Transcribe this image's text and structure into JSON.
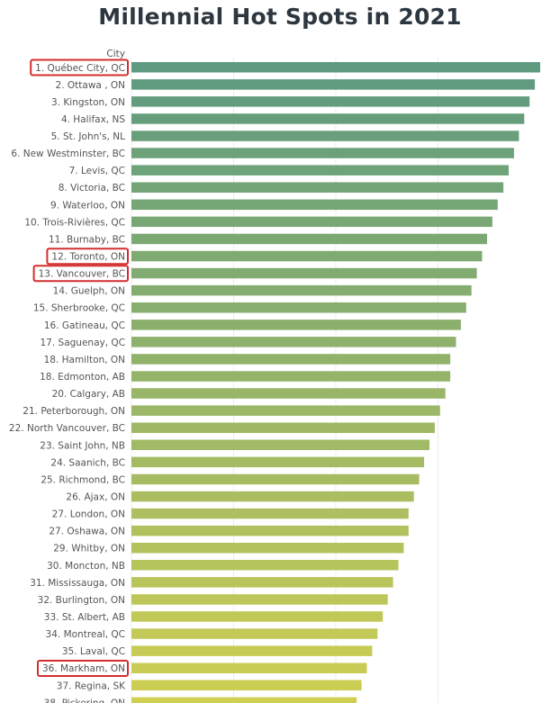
{
  "chart_data": {
    "type": "bar",
    "orientation": "horizontal",
    "title": "Millennial Hot Spots in 2021",
    "category_axis_label": "City",
    "categories": [
      "1. Québec City, QC",
      "2. Ottawa , ON",
      "3. Kingston, ON",
      "4. Halifax, NS",
      "5. St. John's, NL",
      "6. New Westminster, BC",
      "7. Levis, QC",
      "8. Victoria, BC",
      "9. Waterloo, ON",
      "10. Trois-Rivières, QC",
      "11. Burnaby, BC",
      "12. Toronto, ON",
      "13. Vancouver, BC",
      "14. Guelph, ON",
      "15. Sherbrooke, QC",
      "16. Gatineau, QC",
      "17. Saguenay, QC",
      "18. Hamilton, ON",
      "18. Edmonton, AB",
      "20. Calgary, AB",
      "21. Peterborough, ON",
      "22. North Vancouver, BC",
      "23. Saint John, NB",
      "24. Saanich, BC",
      "25. Richmond, BC",
      "26. Ajax, ON",
      "27. London, ON",
      "27. Oshawa, ON",
      "29. Whitby, ON",
      "30. Moncton, NB",
      "31. Mississauga, ON",
      "32. Burlington, ON",
      "33. St. Albert, AB",
      "34. Montreal, QC",
      "35. Laval, QC",
      "36. Markham, ON",
      "37. Regina, SK",
      "38. Pickering, ON"
    ],
    "values": [
      100,
      98.7,
      97.4,
      96.1,
      94.8,
      93.6,
      92.3,
      91.0,
      89.6,
      88.3,
      87.0,
      85.8,
      84.5,
      83.2,
      81.9,
      80.6,
      79.4,
      78.0,
      78.0,
      76.8,
      75.5,
      74.2,
      72.9,
      71.6,
      70.4,
      69.1,
      67.8,
      67.8,
      66.6,
      65.3,
      64.0,
      62.7,
      61.5,
      60.2,
      58.9,
      57.6,
      56.3,
      55.1
    ],
    "highlighted": [
      "1. Québec City, QC",
      "12. Toronto, ON",
      "13. Vancouver, BC",
      "36. Markham, ON"
    ],
    "highlight_color": "#d32f2f",
    "color_gradient": [
      "#5d9a80",
      "#cfcf52"
    ],
    "grid": "vertical"
  }
}
